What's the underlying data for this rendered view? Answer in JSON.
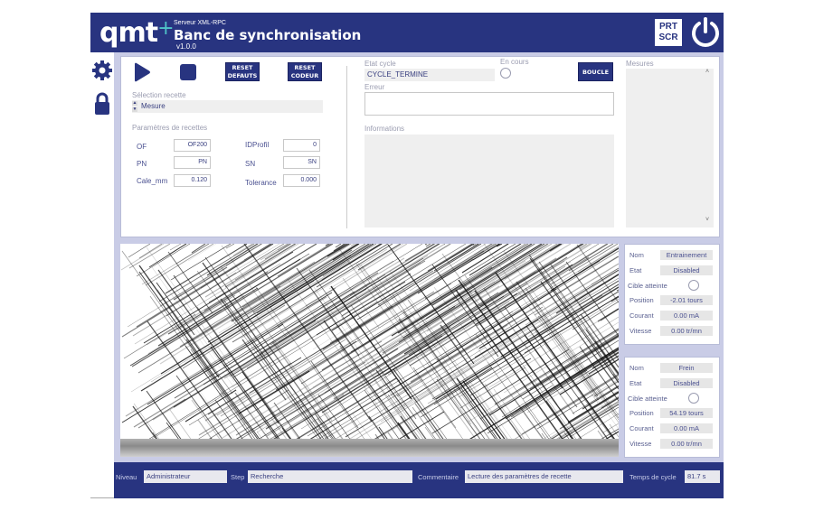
{
  "header": {
    "logo": "qmt",
    "logo_plus": "+",
    "server": "Serveur XML-RPC",
    "title": "Banc de synchronisation",
    "version": "v1.0.0",
    "prtscr": [
      "PRT",
      "SCR"
    ]
  },
  "sidebar": {
    "icons": [
      "gear-icon",
      "lock-icon"
    ]
  },
  "controls": {
    "reset_defauts": [
      "RESET",
      "DEFAUTS"
    ],
    "reset_codeur": [
      "RESET",
      "CODEUR"
    ],
    "boucle": "BOUCLE"
  },
  "recipe": {
    "label": "Sélection recette",
    "value": "Mesure"
  },
  "params": {
    "label": "Paramètres de recettes",
    "of_label": "OF",
    "of": "OF200",
    "pn_label": "PN",
    "pn": "PN",
    "cale_label": "Cale_mm",
    "cale": "0.120",
    "idprofil_label": "IDProfil",
    "idprofil": "0",
    "sn_label": "SN",
    "sn": "SN",
    "tol_label": "Tolerance",
    "tol": "0.000"
  },
  "cycle": {
    "etat_label": "Etat cycle",
    "etat": "CYCLE_TERMINE",
    "encours_label": "En cours",
    "erreur_label": "Erreur",
    "erreur": "",
    "info_label": "Informations",
    "info": ""
  },
  "mesures": {
    "label": "Mesures"
  },
  "motors": [
    {
      "nom_label": "Nom",
      "nom": "Entrainement",
      "etat_label": "Etat",
      "etat": "Disabled",
      "cible_label": "Cible atteinte",
      "pos_label": "Position",
      "pos": "-2.01 tours",
      "cour_label": "Courant",
      "cour": "0.00 mA",
      "vit_label": "Vitesse",
      "vit": "0.00 tr/mn"
    },
    {
      "nom_label": "Nom",
      "nom": "Frein",
      "etat_label": "Etat",
      "etat": "Disabled",
      "cible_label": "Cible atteinte",
      "pos_label": "Position",
      "pos": "54.19 tours",
      "cour_label": "Courant",
      "cour": "0.00 mA",
      "vit_label": "Vitesse",
      "vit": "0.00 tr/mn"
    }
  ],
  "footer": {
    "niveau_label": "Niveau",
    "niveau": "Administrateur",
    "step_label": "Step",
    "step": "Recherche",
    "comment_label": "Commentaire",
    "comment": "Lecture des paramètres de recette",
    "temps_label": "Temps de cycle",
    "temps": "81.7 s"
  },
  "colors": {
    "primary": "#283480",
    "background": "#c9cce6"
  }
}
